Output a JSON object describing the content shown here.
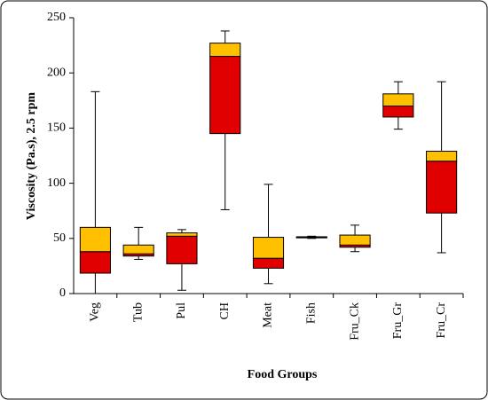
{
  "chart_data": {
    "type": "box",
    "xlabel": "Food Groups",
    "ylabel": "Viscosity (Pa.s), 2.5 rpm",
    "categories": [
      "Veg",
      "Tub",
      "Pul",
      "CH",
      "Meat",
      "Fish",
      "Fru_Ck",
      "Fru_Gr",
      "Fru_Cr"
    ],
    "min": [
      0,
      31,
      3,
      76,
      9,
      50,
      38,
      149,
      37
    ],
    "q1": [
      18.5,
      34,
      27,
      145,
      23,
      50.5,
      42,
      160,
      73
    ],
    "median": [
      38,
      36,
      52,
      215,
      32,
      51,
      44,
      170,
      120
    ],
    "q3": [
      60,
      44,
      55,
      227,
      51,
      51.5,
      53,
      181,
      129
    ],
    "max": [
      183,
      60,
      58,
      238,
      99,
      52,
      62,
      192,
      192
    ],
    "lower_color": "#e00000",
    "upper_color": "#ffc000",
    "ylim": [
      0,
      250
    ],
    "yticks": [
      0,
      50,
      100,
      150,
      200,
      250
    ],
    "grid": false
  }
}
